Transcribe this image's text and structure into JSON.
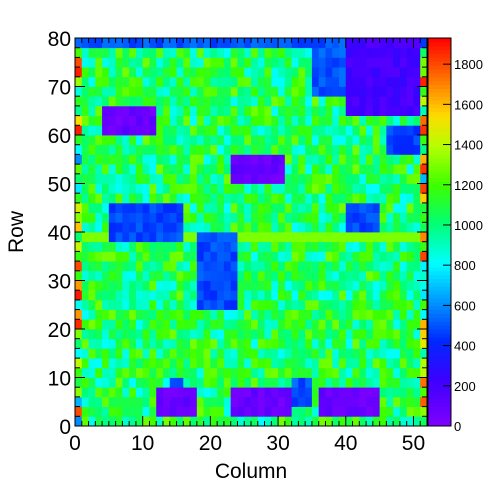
{
  "chart_data": {
    "type": "heatmap",
    "title": "",
    "xlabel": "Column",
    "ylabel": "Row",
    "xlim": [
      0,
      52
    ],
    "ylim": [
      0,
      80
    ],
    "x_ticks": [
      "0",
      "10",
      "20",
      "30",
      "40",
      "50"
    ],
    "y_ticks": [
      "0",
      "10",
      "20",
      "30",
      "40",
      "50",
      "60",
      "70",
      "80"
    ],
    "z_range": [
      0,
      1930
    ],
    "colorbar_ticks": [
      "0",
      "200",
      "400",
      "600",
      "800",
      "1000",
      "1200",
      "1400",
      "1600",
      "1800"
    ],
    "colormap": "rainbow",
    "grid": false,
    "cell_size": [
      1,
      2
    ],
    "background_value": 1050,
    "regions": [
      {
        "x": [
          12,
          18
        ],
        "y": [
          1.5,
          7.5
        ],
        "z": 80
      },
      {
        "x": [
          23,
          32
        ],
        "y": [
          1.5,
          7.5
        ],
        "z": 80
      },
      {
        "x": [
          36,
          45
        ],
        "y": [
          1.5,
          7.5
        ],
        "z": 80
      },
      {
        "x": [
          4,
          9
        ],
        "y": [
          60.5,
          66.5
        ],
        "z": 80
      },
      {
        "x": [
          9,
          12
        ],
        "y": [
          60.5,
          66.5
        ],
        "z": 80
      },
      {
        "x": [
          23,
          31
        ],
        "y": [
          51,
          56
        ],
        "z": 80
      },
      {
        "x": [
          40,
          51
        ],
        "y": [
          64,
          80
        ],
        "z": 200
      },
      {
        "x": [
          35,
          40
        ],
        "y": [
          68,
          80
        ],
        "z": 500
      },
      {
        "x": [
          0,
          52
        ],
        "y": [
          78,
          80
        ],
        "z": 500
      },
      {
        "x": [
          5,
          16
        ],
        "y": [
          38,
          47
        ],
        "z": 480
      },
      {
        "x": [
          18,
          24
        ],
        "y": [
          24,
          40
        ],
        "z": 480
      },
      {
        "x": [
          40,
          45
        ],
        "y": [
          40,
          47
        ],
        "z": 480
      },
      {
        "x": [
          46,
          51
        ],
        "y": [
          56,
          63
        ],
        "z": 470
      },
      {
        "x": [
          14,
          16
        ],
        "y": [
          4,
          10
        ],
        "z": 500
      },
      {
        "x": [
          32,
          35
        ],
        "y": [
          4,
          10
        ],
        "z": 500
      }
    ]
  }
}
